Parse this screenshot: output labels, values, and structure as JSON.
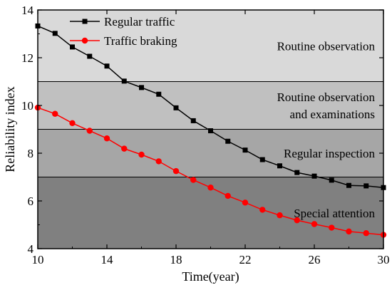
{
  "chart_data": {
    "type": "line",
    "xlabel": "Time(year)",
    "ylabel": "Reliability index",
    "xlim": [
      10,
      30
    ],
    "ylim": [
      4,
      14
    ],
    "x_ticks": [
      10,
      14,
      18,
      22,
      26,
      30
    ],
    "y_ticks": [
      4,
      6,
      8,
      10,
      12,
      14
    ],
    "legend_position": "top-left",
    "bands": [
      {
        "from": 11,
        "to": 14,
        "label_lines": [
          "Routine observation"
        ],
        "color": "#d9d9d9"
      },
      {
        "from": 9,
        "to": 11,
        "label_lines": [
          "Routine observation",
          "and examinations"
        ],
        "color": "#c0c0c0"
      },
      {
        "from": 7,
        "to": 9,
        "label_lines": [
          "Regular inspection"
        ],
        "color": "#a6a6a6"
      },
      {
        "from": 4,
        "to": 7,
        "label_lines": [
          "Special attention"
        ],
        "color": "#808080"
      }
    ],
    "x": [
      10,
      11,
      12,
      13,
      14,
      15,
      16,
      17,
      18,
      19,
      20,
      21,
      22,
      23,
      24,
      25,
      26,
      27,
      28,
      29,
      30
    ],
    "series": [
      {
        "name": "Regular traffic",
        "color": "#000000",
        "marker": "square",
        "values": [
          13.33,
          13.02,
          12.45,
          12.06,
          11.65,
          11.02,
          10.75,
          10.47,
          9.9,
          9.36,
          8.94,
          8.5,
          8.13,
          7.73,
          7.47,
          7.19,
          7.04,
          6.87,
          6.65,
          6.63,
          6.56
        ]
      },
      {
        "name": "Traffic braking",
        "color": "#ff0000",
        "marker": "circle",
        "values": [
          9.91,
          9.65,
          9.26,
          8.94,
          8.62,
          8.19,
          7.94,
          7.66,
          7.25,
          6.88,
          6.56,
          6.21,
          5.93,
          5.63,
          5.4,
          5.19,
          5.03,
          4.88,
          4.72,
          4.65,
          4.58
        ]
      }
    ]
  }
}
